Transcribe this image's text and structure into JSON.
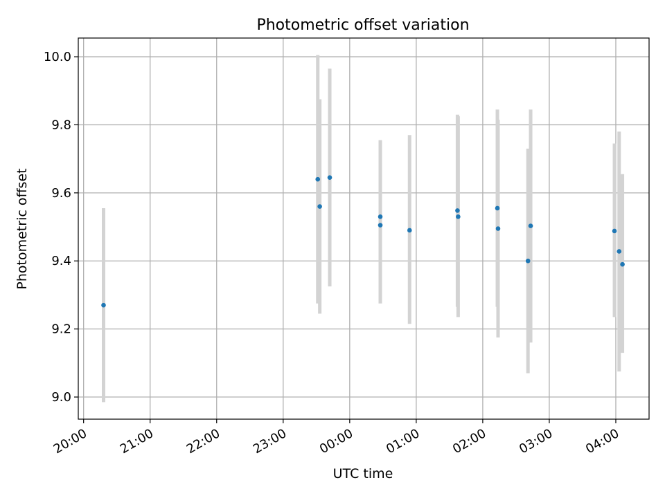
{
  "colors": {
    "point": "#1f77b4",
    "errorbar": "#d3d3d3",
    "grid": "#b0b0b0",
    "axis": "#000000"
  },
  "chart_data": {
    "type": "scatter",
    "title": "Photometric offset variation",
    "xlabel": "UTC time",
    "ylabel": "Photometric offset",
    "xunit": "hours since 20:00 UTC",
    "xlim": [
      -0.08,
      8.5
    ],
    "ylim": [
      8.935,
      10.055
    ],
    "x_ticks": [
      0,
      1,
      2,
      3,
      4,
      5,
      6,
      7,
      8
    ],
    "x_tick_labels": [
      "20:00",
      "21:00",
      "22:00",
      "23:00",
      "00:00",
      "01:00",
      "02:00",
      "03:00",
      "04:00"
    ],
    "y_ticks": [
      9.0,
      9.2,
      9.4,
      9.6,
      9.8,
      10.0
    ],
    "y_tick_labels": [
      "9.0",
      "9.2",
      "9.4",
      "9.6",
      "9.8",
      "10.0"
    ],
    "grid": true,
    "series": [
      {
        "points": [
          {
            "x": 0.3,
            "y": 9.27,
            "err_lo": 8.985,
            "err_hi": 9.555
          },
          {
            "x": 3.52,
            "y": 9.64,
            "err_lo": 9.275,
            "err_hi": 10.005
          },
          {
            "x": 3.55,
            "y": 9.56,
            "err_lo": 9.245,
            "err_hi": 9.875
          },
          {
            "x": 3.7,
            "y": 9.645,
            "err_lo": 9.325,
            "err_hi": 9.965
          },
          {
            "x": 4.46,
            "y": 9.53,
            "err_lo": 9.305,
            "err_hi": 9.755
          },
          {
            "x": 4.46,
            "y": 9.505,
            "err_lo": 9.275,
            "err_hi": 9.735
          },
          {
            "x": 4.9,
            "y": 9.49,
            "err_lo": 9.215,
            "err_hi": 9.77
          },
          {
            "x": 5.62,
            "y": 9.548,
            "err_lo": 9.265,
            "err_hi": 9.83
          },
          {
            "x": 5.63,
            "y": 9.53,
            "err_lo": 9.235,
            "err_hi": 9.825
          },
          {
            "x": 6.22,
            "y": 9.555,
            "err_lo": 9.265,
            "err_hi": 9.845
          },
          {
            "x": 6.23,
            "y": 9.495,
            "err_lo": 9.175,
            "err_hi": 9.815
          },
          {
            "x": 6.68,
            "y": 9.4,
            "err_lo": 9.07,
            "err_hi": 9.73
          },
          {
            "x": 6.72,
            "y": 9.503,
            "err_lo": 9.16,
            "err_hi": 9.845
          },
          {
            "x": 7.98,
            "y": 9.488,
            "err_lo": 9.235,
            "err_hi": 9.745
          },
          {
            "x": 8.05,
            "y": 9.428,
            "err_lo": 9.075,
            "err_hi": 9.78
          },
          {
            "x": 8.1,
            "y": 9.39,
            "err_lo": 9.13,
            "err_hi": 9.655
          }
        ]
      }
    ]
  }
}
